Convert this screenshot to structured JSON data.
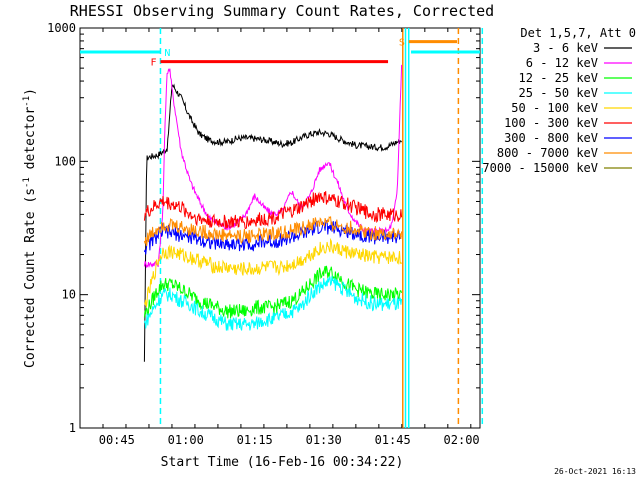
{
  "chart_data": {
    "type": "line",
    "title": "RHESSI Observing Summary Count Rates, Corrected",
    "xlabel": "Start Time (16-Feb-16 00:34:22)",
    "ylabel_main": "Corrected Count Rate (s",
    "ylabel_sup1": "-1",
    "ylabel_mid": " detector",
    "ylabel_sup2": "-1",
    "ylabel_end": ")",
    "y_scale": "log",
    "ylim": [
      1,
      1000
    ],
    "xlim_minutes": [
      0,
      87
    ],
    "x_ticks": [
      {
        "m": 8,
        "label": "00:45"
      },
      {
        "m": 23,
        "label": "01:00"
      },
      {
        "m": 38,
        "label": "01:15"
      },
      {
        "m": 53,
        "label": "01:30"
      },
      {
        "m": 68,
        "label": "01:45"
      },
      {
        "m": 83,
        "label": "02:00"
      }
    ],
    "y_ticks": [
      {
        "v": 1,
        "label": "1"
      },
      {
        "v": 10,
        "label": "10"
      },
      {
        "v": 100,
        "label": "100"
      },
      {
        "v": 1000,
        "label": "1000"
      }
    ],
    "legend_header": "Det 1,5,7, Att 0",
    "legend_position": "top-right, outside plot",
    "series": [
      {
        "name": "3 - 6 keV",
        "color": "#000000",
        "x": [
          14,
          14.5,
          15,
          16,
          17,
          18,
          19,
          20,
          22,
          24,
          26,
          28,
          30,
          32,
          34,
          36,
          38,
          40,
          42,
          44,
          46,
          48,
          50,
          52,
          54,
          56,
          58,
          60,
          62,
          64,
          66,
          67,
          68,
          69,
          70
        ],
        "values": [
          3,
          105,
          108,
          110,
          112,
          118,
          125,
          380,
          300,
          210,
          160,
          145,
          140,
          140,
          148,
          150,
          148,
          145,
          140,
          135,
          138,
          150,
          160,
          165,
          162,
          150,
          140,
          132,
          130,
          128,
          128,
          130,
          135,
          140,
          145
        ]
      },
      {
        "name": "6 - 12 keV",
        "color": "#ff00ff",
        "x": [
          14,
          17,
          18,
          18.5,
          19,
          19.5,
          20,
          22,
          24,
          26,
          28,
          30,
          32,
          34,
          36,
          38,
          40,
          42,
          44,
          46,
          48,
          50,
          52,
          54,
          56,
          58,
          60,
          62,
          64,
          66,
          67,
          68,
          69,
          70
        ],
        "values": [
          17,
          17,
          40,
          200,
          480,
          500,
          350,
          120,
          70,
          50,
          38,
          34,
          32,
          34,
          40,
          55,
          45,
          40,
          42,
          60,
          45,
          55,
          85,
          100,
          70,
          45,
          35,
          30,
          30,
          30,
          30,
          35,
          60,
          600
        ]
      },
      {
        "name": "12 - 25 keV",
        "color": "#00ff00",
        "x": [
          14,
          17,
          18,
          20,
          22,
          24,
          26,
          28,
          30,
          32,
          34,
          36,
          38,
          40,
          42,
          44,
          46,
          48,
          50,
          52,
          54,
          56,
          58,
          60,
          62,
          64,
          66,
          68,
          70
        ],
        "values": [
          7,
          11,
          12,
          12,
          11,
          10,
          9,
          8.5,
          8,
          7.5,
          7.5,
          7.5,
          8,
          8,
          8,
          8.5,
          9,
          10,
          12,
          14,
          15,
          14,
          12,
          11,
          10.5,
          10,
          10,
          10,
          10
        ]
      },
      {
        "name": "25 - 50 keV",
        "color": "#00ffff",
        "x": [
          14,
          17,
          18,
          20,
          22,
          24,
          26,
          28,
          30,
          32,
          34,
          36,
          38,
          40,
          42,
          44,
          46,
          48,
          50,
          52,
          54,
          56,
          58,
          60,
          62,
          64,
          66,
          68,
          70
        ],
        "values": [
          6,
          9,
          10,
          10,
          9,
          8.5,
          7.5,
          7,
          6.5,
          6,
          6,
          6,
          6,
          6.5,
          6.5,
          7,
          7.5,
          8,
          10,
          11.5,
          12.5,
          12,
          10.5,
          9.5,
          9,
          8.5,
          8.5,
          8.5,
          8.5
        ]
      },
      {
        "name": "50 - 100 keV",
        "color": "#ffd700",
        "x": [
          14,
          17,
          18,
          20,
          22,
          24,
          26,
          28,
          30,
          32,
          34,
          36,
          38,
          40,
          42,
          44,
          46,
          48,
          50,
          52,
          54,
          56,
          58,
          60,
          62,
          64,
          66,
          68,
          70
        ],
        "values": [
          8,
          18,
          21,
          21,
          20,
          19,
          18,
          17,
          16,
          16,
          15.5,
          15.5,
          15.5,
          16,
          16,
          16,
          17,
          18,
          20,
          22,
          23,
          22,
          21,
          20,
          19.5,
          19,
          19,
          19,
          19
        ]
      },
      {
        "name": "100 - 300 keV",
        "color": "#ff0000",
        "x": [
          14,
          17,
          18,
          20,
          22,
          24,
          26,
          28,
          30,
          32,
          34,
          36,
          38,
          40,
          42,
          44,
          46,
          48,
          50,
          52,
          54,
          56,
          58,
          60,
          62,
          64,
          66,
          68,
          70
        ],
        "values": [
          40,
          48,
          50,
          48,
          45,
          40,
          37,
          36,
          35,
          35,
          35,
          35,
          36,
          37,
          38,
          40,
          42,
          45,
          50,
          55,
          52,
          50,
          48,
          45,
          42,
          40,
          40,
          40,
          40
        ]
      },
      {
        "name": "300 - 800 keV",
        "color": "#0000ff",
        "x": [
          14,
          17,
          18,
          20,
          22,
          24,
          26,
          28,
          30,
          32,
          34,
          36,
          38,
          40,
          42,
          44,
          46,
          48,
          50,
          52,
          54,
          56,
          58,
          60,
          62,
          64,
          66,
          68,
          70
        ],
        "values": [
          22,
          28,
          30,
          29,
          28,
          27,
          26,
          25,
          24,
          24,
          24,
          24,
          24,
          25,
          25,
          26,
          27,
          28,
          30,
          32,
          32,
          31,
          30,
          29,
          28,
          27,
          27,
          27,
          27
        ]
      },
      {
        "name": "800 - 7000 keV",
        "color": "#ff8c00",
        "x": [
          14,
          17,
          18,
          20,
          22,
          24,
          26,
          28,
          30,
          32,
          34,
          36,
          38,
          40,
          42,
          44,
          46,
          48,
          50,
          52,
          54,
          56,
          58,
          60,
          62,
          64,
          66,
          68,
          70
        ],
        "values": [
          25,
          32,
          34,
          33,
          32,
          31,
          30,
          29,
          28,
          28,
          27.5,
          27.5,
          28,
          28,
          29,
          29,
          30,
          31,
          33,
          35,
          34,
          33,
          32,
          31,
          30,
          29,
          29,
          28,
          28
        ]
      },
      {
        "name": "7000 - 15000 keV",
        "color": "#808000",
        "x": [],
        "values": []
      }
    ],
    "flag_bars": [
      {
        "label": "N",
        "color": "#00ffff",
        "x_start": 0,
        "x_end": 17.5,
        "y_value": 660,
        "label_x": 19
      },
      {
        "label": "N",
        "color": "#00ffff",
        "x_start": 72,
        "x_end": 87,
        "y_value": 660,
        "label_x": null
      },
      {
        "label": "F",
        "color": "#ff0000",
        "x_start": 17.5,
        "x_end": 67,
        "y_value": 560,
        "label_x": 16
      },
      {
        "label": "S",
        "color": "#ff8c00",
        "x_start": 71.5,
        "x_end": 82,
        "y_value": 790,
        "label_x": 70
      }
    ],
    "vlines": [
      {
        "x": 17.5,
        "color": "#00ffff",
        "style": "dashed"
      },
      {
        "x": 70.8,
        "color": "#00ffff",
        "style": "solid"
      },
      {
        "x": 71.5,
        "color": "#00ffff",
        "style": "solid"
      },
      {
        "x": 70.2,
        "color": "#ff8c00",
        "style": "solid"
      },
      {
        "x": 82.3,
        "color": "#ff8c00",
        "style": "dashed"
      },
      {
        "x": 87.5,
        "color": "#00ffff",
        "style": "dashed"
      }
    ],
    "footer_date": "26-Oct-2021 16:13"
  }
}
